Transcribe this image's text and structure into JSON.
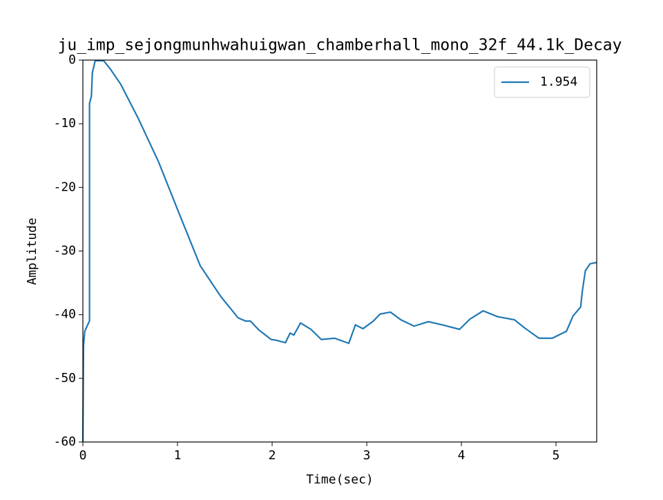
{
  "chart_data": {
    "type": "line",
    "title": "ju_imp_sejongmunhwahuigwan_chamberhall_mono_32f_44.1k_Decay",
    "x_label": "Time(sec)",
    "y_label": "Amplitude",
    "x": [
      0,
      0.007,
      0.02,
      0.06,
      0.07,
      0.07,
      0.09,
      0.1,
      0.13,
      0.22,
      0.29,
      0.4,
      0.58,
      0.8,
      1.02,
      1.24,
      1.46,
      1.57,
      1.64,
      1.72,
      1.77,
      1.86,
      1.99,
      2.04,
      2.14,
      2.19,
      2.23,
      2.3,
      2.41,
      2.52,
      2.66,
      2.81,
      2.88,
      2.96,
      3.07,
      3.14,
      3.25,
      3.36,
      3.5,
      3.65,
      3.8,
      3.98,
      4.09,
      4.23,
      4.38,
      4.56,
      4.67,
      4.82,
      4.96,
      5.11,
      5.18,
      5.26,
      5.28,
      5.31,
      5.36,
      5.43
    ],
    "series": [
      {
        "name": "1.954",
        "color": "#1f77b4",
        "values": [
          -60,
          -44.8,
          -42.6,
          -41.3,
          -41,
          -6.8,
          -5.7,
          -2,
          -0.1,
          -0.1,
          -1.4,
          -3.8,
          -9,
          -16,
          -24.2,
          -32.3,
          -37.2,
          -39.2,
          -40.5,
          -41,
          -41,
          -42.4,
          -43.9,
          -44,
          -44.4,
          -42.9,
          -43.2,
          -41.3,
          -42.3,
          -43.9,
          -43.7,
          -44.5,
          -41.6,
          -42.2,
          -41,
          -39.9,
          -39.6,
          -40.8,
          -41.8,
          -41.1,
          -41.6,
          -42.3,
          -40.7,
          -39.4,
          -40.3,
          -40.8,
          -42.1,
          -43.7,
          -43.7,
          -42.6,
          -40.2,
          -38.8,
          -36.1,
          -33.1,
          -32,
          -31.8
        ]
      }
    ],
    "xlim": [
      0,
      5.43
    ],
    "ylim": [
      -60,
      0
    ],
    "xticks": [
      0,
      1,
      2,
      3,
      4,
      5
    ],
    "yticks": [
      -60,
      -50,
      -40,
      -30,
      -20,
      -10,
      0
    ],
    "legend": "upper right"
  }
}
